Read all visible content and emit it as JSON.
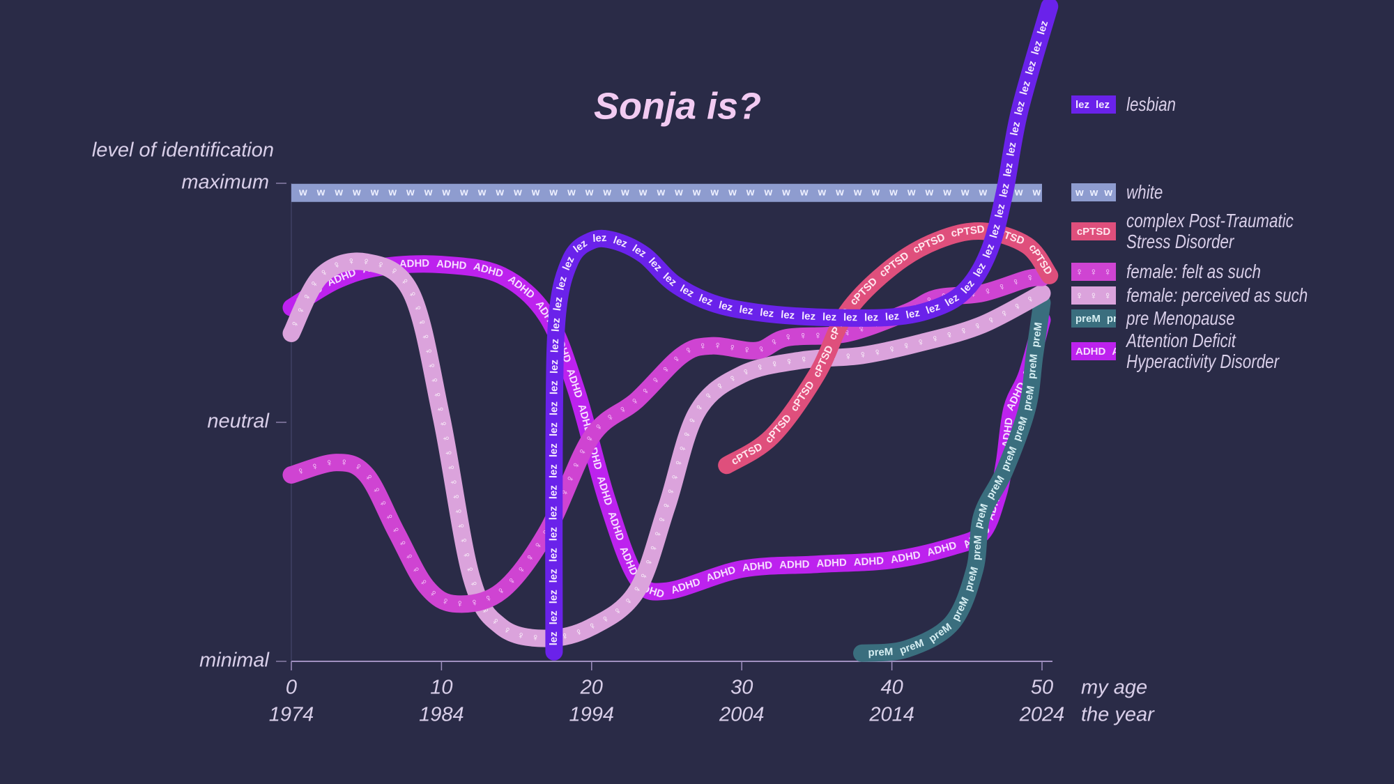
{
  "chart_data": {
    "type": "line",
    "title": "Sonja is?",
    "ylabel": "level of identification",
    "xlabel": "my age",
    "x2label": "the year",
    "xlim": [
      0,
      50
    ],
    "xticks": [
      0,
      10,
      20,
      30,
      40,
      50
    ],
    "x2lim": [
      1974,
      2024
    ],
    "x2ticks": [
      1974,
      1984,
      1994,
      2004,
      2014,
      2024
    ],
    "ylim": [
      0,
      100
    ],
    "yticks": [
      {
        "value": 0,
        "label": "minimal"
      },
      {
        "value": 50,
        "label": "neutral"
      },
      {
        "value": 100,
        "label": "maximum"
      }
    ],
    "series": [
      {
        "name": "lesbian",
        "tag": "lez",
        "color": "#6a22ea",
        "label_color": "#f4e8ff",
        "x": [
          17.5,
          17.5,
          17.7,
          18.6,
          20,
          21.5,
          23.5,
          25.5,
          28,
          31,
          35,
          40,
          43,
          45,
          46.5,
          47.5,
          48.5,
          50.5
        ],
        "values": [
          2,
          45,
          72,
          84,
          88,
          88,
          85,
          79,
          75,
          73,
          72,
          72,
          74,
          78,
          86,
          98,
          115,
          137
        ]
      },
      {
        "name": "white",
        "tag": "w",
        "color": "#8e9ccf",
        "label_color": "#eef0ff",
        "x": [
          0,
          50
        ],
        "values": [
          98,
          98
        ]
      },
      {
        "name": "complex Post-Traumatic Stress Disorder",
        "tag": "cPTSD",
        "color": "#df4f7c",
        "label_color": "#ffe6ee",
        "x": [
          29,
          32,
          35,
          37,
          40,
          43,
          46,
          49,
          50.5
        ],
        "values": [
          41,
          47,
          60,
          73,
          82.5,
          88,
          90,
          87,
          80.7
        ]
      },
      {
        "name": "female: felt as such",
        "tag": "♀",
        "color": "#cf44d2",
        "label_color": "#fbe0ff",
        "x": [
          0,
          3,
          5,
          7,
          9,
          11,
          14,
          17,
          20,
          23,
          26,
          28,
          31,
          33,
          37,
          41,
          43,
          46,
          49,
          50
        ],
        "values": [
          39,
          41.6,
          39,
          27,
          15.6,
          12,
          14.7,
          27,
          47,
          54.6,
          64,
          66,
          65,
          67.7,
          68.6,
          73,
          76,
          77,
          80,
          80.3
        ]
      },
      {
        "name": "female: perceived as such",
        "tag": "♀",
        "color": "#dba3dc",
        "label_color": "#ffffff",
        "x": [
          0,
          2,
          5,
          8,
          10,
          12,
          14,
          17,
          20,
          23,
          25,
          27,
          30,
          34,
          38,
          42,
          46,
          50
        ],
        "values": [
          68.6,
          80.7,
          83.5,
          77,
          51,
          17.5,
          7.2,
          4.8,
          7.2,
          14.7,
          32.3,
          52,
          60,
          63,
          64,
          66.7,
          70.4,
          77
        ]
      },
      {
        "name": "pre Menopause",
        "tag": "preM",
        "color": "#3a6e7e",
        "label_color": "#d6eef2",
        "x": [
          38,
          41,
          44,
          45.5,
          46,
          47.5,
          49,
          49.5,
          50
        ],
        "values": [
          1.7,
          2.6,
          8,
          19,
          30.5,
          39.8,
          52.8,
          64,
          75
        ]
      },
      {
        "name": "Attention Deficit Hyperactivity Disorder",
        "tag": "ADHD",
        "color": "#bd22ee",
        "label_color": "#f6dcff",
        "x": [
          0,
          3,
          6,
          10,
          14,
          17,
          19,
          21,
          23,
          25,
          30,
          35,
          40,
          44,
          46,
          47,
          47.5,
          48,
          49,
          50
        ],
        "values": [
          74,
          79.7,
          82.5,
          83,
          80.7,
          72.3,
          56.5,
          34,
          17.5,
          14.7,
          19.3,
          20.3,
          21.2,
          24,
          26.8,
          34.2,
          41.6,
          52.8,
          60,
          71.4
        ]
      }
    ]
  }
}
